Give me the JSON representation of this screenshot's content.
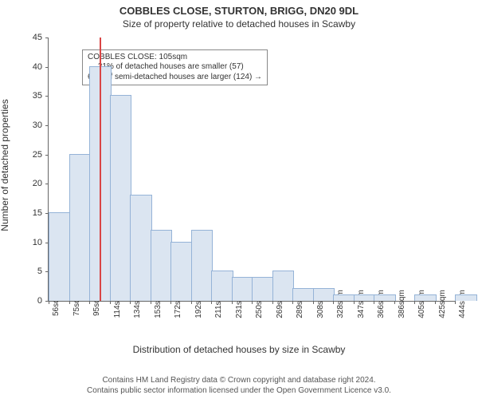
{
  "titles": {
    "main": "COBBLES CLOSE, STURTON, BRIGG, DN20 9DL",
    "sub": "Size of property relative to detached houses in Scawby"
  },
  "chart": {
    "type": "histogram",
    "ylabel": "Number of detached properties",
    "xlabel": "Distribution of detached houses by size in Scawby",
    "ylim": [
      0,
      45
    ],
    "ytick_step": 5,
    "x_tick_start": 56,
    "x_tick_step": 19.4,
    "x_tick_unit": "sqm",
    "n_ticks": 21,
    "bar_width_sqm": 19.4,
    "bar_values": [
      15,
      25,
      40,
      35,
      18,
      12,
      10,
      12,
      5,
      4,
      4,
      5,
      2,
      2,
      1,
      1,
      1,
      0,
      1,
      0,
      1
    ],
    "bar_fill": "#dbe5f1",
    "bar_stroke": "#95b3d7",
    "background_color": "#ffffff",
    "axis_color": "#666666",
    "tick_font_size": 10,
    "label_font_size": 12,
    "marker": {
      "value_sqm": 105,
      "color": "#d94545"
    },
    "annotation": {
      "line1": "COBBLES CLOSE: 105sqm",
      "line2": "← 31% of detached houses are smaller (57)",
      "line3": "69% of semi-detached houses are larger (124) →",
      "left_sqm": 88,
      "top_y": 43
    }
  },
  "footer": {
    "line1": "Contains HM Land Registry data © Crown copyright and database right 2024.",
    "line2": "Contains public sector information licensed under the Open Government Licence v3.0."
  }
}
